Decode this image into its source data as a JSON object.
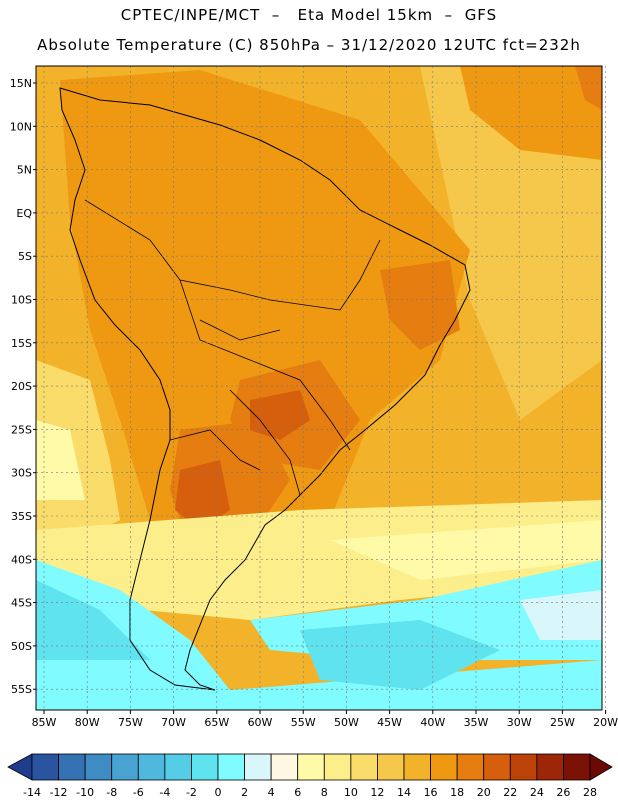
{
  "title_line1": "CPTEC/INPE/MCT  –   Eta Model 15km  –  GFS",
  "title_line2": "Absolute Temperature (C) 850hPa – 31/12/2020 12UTC fct=232h",
  "lat_labels": [
    "15N",
    "10N",
    "5N",
    "EQ",
    "5S",
    "10S",
    "15S",
    "20S",
    "25S",
    "30S",
    "35S",
    "40S",
    "45S",
    "50S",
    "55S"
  ],
  "lon_labels": [
    "85W",
    "80W",
    "75W",
    "70W",
    "65W",
    "60W",
    "55W",
    "50W",
    "45W",
    "40W",
    "35W",
    "30W",
    "25W",
    "20W"
  ],
  "colorbar": {
    "labels": [
      "-14",
      "-12",
      "-10",
      "-8",
      "-6",
      "-4",
      "-2",
      "0",
      "2",
      "4",
      "6",
      "8",
      "10",
      "12",
      "14",
      "16",
      "18",
      "20",
      "22",
      "24",
      "26",
      "28"
    ],
    "colors": [
      "#1f3d8c",
      "#2a54a0",
      "#3572b4",
      "#3f8cc4",
      "#48a3d3",
      "#4fb8dd",
      "#55cde6",
      "#5fe3ef",
      "#80fbff",
      "#d9f7fb",
      "#fff8e3",
      "#fffaa8",
      "#fcee8a",
      "#f9dc6a",
      "#f5c84c",
      "#f2b22a",
      "#ef9912",
      "#e57d10",
      "#d55f0c",
      "#bd420a",
      "#9e2608",
      "#7a1306",
      "#6b0a05"
    ]
  }
}
